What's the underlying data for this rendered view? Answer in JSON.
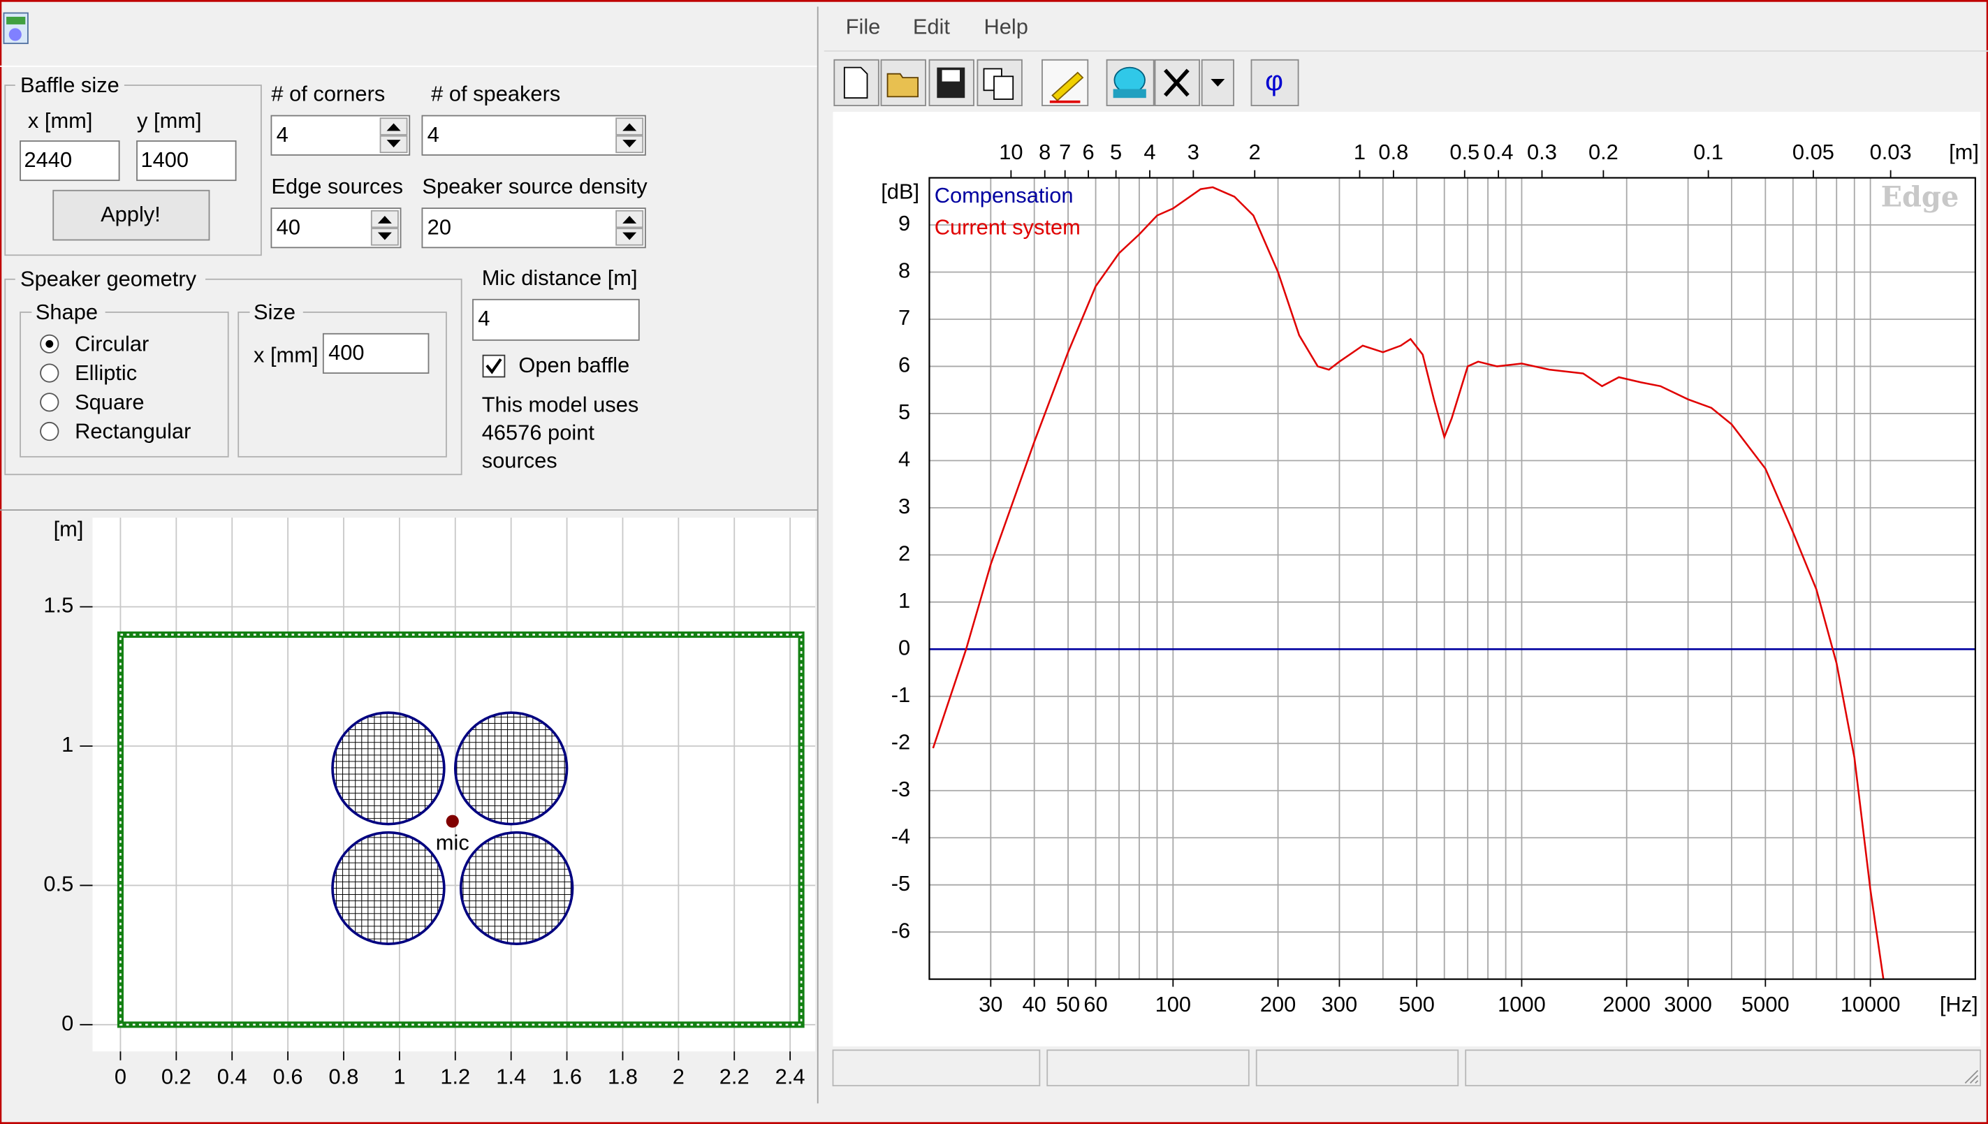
{
  "app": {
    "menu": [
      "File",
      "Edit",
      "Help"
    ],
    "toolbar_phi": "φ"
  },
  "controls": {
    "baffle_size": {
      "title": "Baffle size",
      "x_label": "x [mm]",
      "x_value": "2440",
      "y_label": "y [mm]",
      "y_value": "1400",
      "apply": "Apply!"
    },
    "corners": {
      "label": "# of corners",
      "value": "4"
    },
    "speakers": {
      "label": "# of speakers",
      "value": "4"
    },
    "edge_sources": {
      "label": "Edge sources",
      "value": "40"
    },
    "speaker_density": {
      "label": "Speaker source density",
      "value": "20"
    },
    "speaker_geometry": {
      "title": "Speaker geometry",
      "shape_title": "Shape",
      "shapes": [
        "Circular",
        "Elliptic",
        "Square",
        "Rectangular"
      ],
      "size_title": "Size",
      "size_label": "x [mm]",
      "size_value": "400"
    },
    "mic_distance": {
      "label": "Mic distance [m]",
      "value": "4"
    },
    "open_baffle": "Open baffle",
    "info": [
      "This model uses",
      "46576 point",
      "sources"
    ]
  },
  "chart_data": [
    {
      "type": "baffle",
      "ylabel": "[m]",
      "xlim": [
        -0.1,
        2.49
      ],
      "ylim": [
        -0.096,
        1.82
      ],
      "xticks": [
        0,
        0.2,
        0.4,
        0.6,
        0.8,
        1,
        1.2,
        1.4,
        1.6,
        1.8,
        2,
        2.2,
        2.4
      ],
      "yticks": [
        0,
        0.5,
        1,
        1.5
      ],
      "grid": true,
      "baffle": {
        "width": 2.44,
        "height": 1.4,
        "color": "#138013"
      },
      "speakers": {
        "x": [
          0.96,
          1.4,
          0.96,
          1.42
        ],
        "y": [
          0.92,
          0.92,
          0.49,
          0.49
        ],
        "radius": 0.2,
        "color": "#000080"
      },
      "mic": {
        "x": 1.19,
        "y": 0.73,
        "label": "mic",
        "color": "#800000"
      }
    },
    {
      "type": "line",
      "xlabel": "[Hz]",
      "ylabel": "[dB]",
      "x2label": "[m]",
      "watermark": "Edge",
      "xscale": "log",
      "xlim": [
        20,
        20000
      ],
      "x2lim": [
        17.15,
        0.01715
      ],
      "ylim": [
        -7,
        10
      ],
      "xticks": [
        30,
        40,
        50,
        60,
        100,
        200,
        300,
        500,
        1000,
        2000,
        3000,
        5000,
        10000
      ],
      "xgrid": [
        20,
        30,
        40,
        50,
        60,
        70,
        80,
        90,
        100,
        200,
        300,
        400,
        500,
        600,
        700,
        800,
        900,
        1000,
        2000,
        3000,
        4000,
        5000,
        6000,
        7000,
        8000,
        9000,
        10000,
        20000
      ],
      "x2ticks": [
        10,
        8,
        7,
        6,
        5,
        4,
        3,
        2,
        1,
        0.8,
        0.5,
        0.4,
        0.3,
        0.2,
        0.1,
        0.05,
        0.03
      ],
      "yticks": [
        -6,
        -5,
        -4,
        -3,
        -2,
        -1,
        0,
        1,
        2,
        3,
        4,
        5,
        6,
        7,
        8,
        9
      ],
      "grid": true,
      "legend": "upper left",
      "series": [
        {
          "name": "Compensation",
          "color": "#0000a0",
          "x": [
            20,
            20000
          ],
          "values": [
            0,
            0
          ]
        },
        {
          "name": "Current system",
          "color": "#e00000",
          "x": [
            20.5,
            25.5,
            30,
            40,
            50,
            60,
            70,
            80,
            90,
            100,
            120,
            130,
            150,
            170,
            200,
            230,
            260,
            280,
            300,
            350,
            400,
            450,
            480,
            520,
            560,
            600,
            630,
            700,
            750,
            850,
            1000,
            1200,
            1500,
            1700,
            1900,
            2200,
            2500,
            3000,
            3500,
            4000,
            5000,
            6000,
            7000,
            8000,
            9000,
            10000,
            10900
          ],
          "values": [
            -2.1,
            0,
            1.8,
            4.4,
            6.3,
            7.7,
            8.4,
            8.8,
            9.2,
            9.35,
            9.76,
            9.8,
            9.6,
            9.2,
            8.0,
            6.66,
            6.0,
            5.93,
            6.1,
            6.44,
            6.3,
            6.44,
            6.58,
            6.25,
            5.3,
            4.5,
            4.9,
            6.0,
            6.1,
            6.0,
            6.06,
            5.93,
            5.85,
            5.58,
            5.77,
            5.66,
            5.58,
            5.3,
            5.12,
            4.77,
            3.83,
            2.48,
            1.27,
            -0.3,
            -2.3,
            -5.1,
            -7
          ]
        }
      ]
    }
  ]
}
